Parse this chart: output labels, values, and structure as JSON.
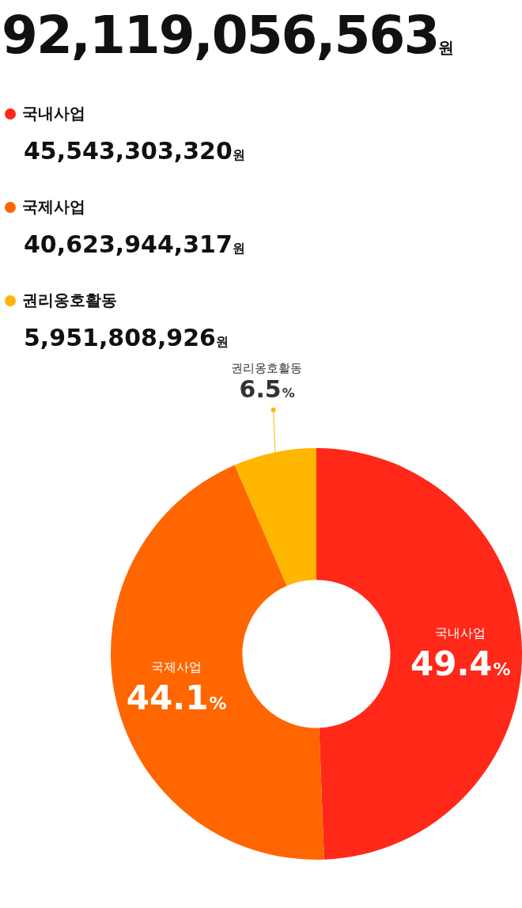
{
  "chart_data": {
    "type": "donut",
    "title": "92,119,056,563원",
    "categories": [
      "국내사업",
      "국제사업",
      "권리옹호활동"
    ],
    "values": [
      49.4,
      44.1,
      6.5
    ],
    "value_labels": [
      "49.4%",
      "44.1%",
      "6.5%"
    ],
    "colors": [
      "#ff2819",
      "#ff6600",
      "#ffb600"
    ],
    "legend": "top left",
    "annotations": [
      "45,543,303,320원",
      "40,623,944,317원",
      "5,951,808,926원"
    ]
  }
}
